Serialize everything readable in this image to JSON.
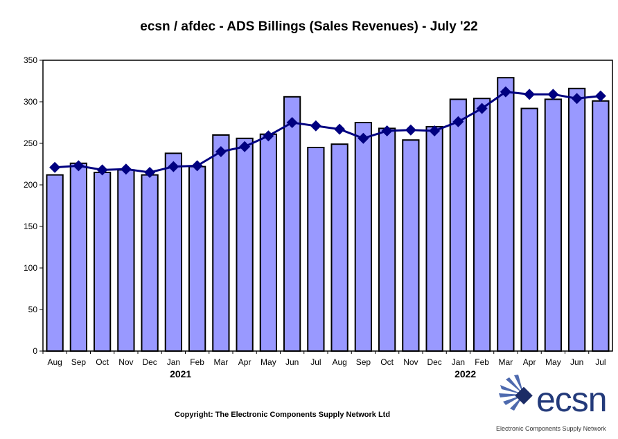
{
  "chart_data": {
    "type": "bar",
    "title": "ecsn / afdec - ADS Billings (Sales Revenues) - July '22",
    "categories": [
      "Aug",
      "Sep",
      "Oct",
      "Nov",
      "Dec",
      "Jan",
      "Feb",
      "Mar",
      "Apr",
      "May",
      "Jun",
      "Jul",
      "Aug",
      "Sep",
      "Oct",
      "Nov",
      "Dec",
      "Jan",
      "Feb",
      "Mar",
      "Apr",
      "May",
      "Jun",
      "Jul"
    ],
    "year_labels": [
      {
        "label": "2021",
        "category_index": 5
      },
      {
        "label": "2022",
        "category_index": 17
      }
    ],
    "series": [
      {
        "kind": "bar",
        "values": [
          212,
          226,
          215,
          218,
          212,
          238,
          222,
          260,
          256,
          261,
          306,
          245,
          249,
          275,
          268,
          254,
          270,
          303,
          304,
          329,
          292,
          303,
          316,
          301
        ]
      },
      {
        "kind": "line",
        "values": [
          221,
          223,
          218,
          219,
          215,
          222,
          223,
          240,
          246,
          259,
          275,
          271,
          267,
          256,
          265,
          266,
          265,
          276,
          292,
          312,
          309,
          309,
          304,
          307
        ]
      }
    ],
    "ylim": [
      0,
      350
    ],
    "yticks": [
      0,
      50,
      100,
      150,
      200,
      250,
      300,
      350
    ],
    "colors": {
      "bar": "#9999ff",
      "bar_edge": "#000000",
      "line": "#000080",
      "marker": "#000080"
    },
    "grid": false
  },
  "footer": {
    "copyright": "Copyright: The Electronic Components Supply Network Ltd",
    "logo_text": "ecsn",
    "logo_caption": "Electronic Components Supply Network"
  }
}
